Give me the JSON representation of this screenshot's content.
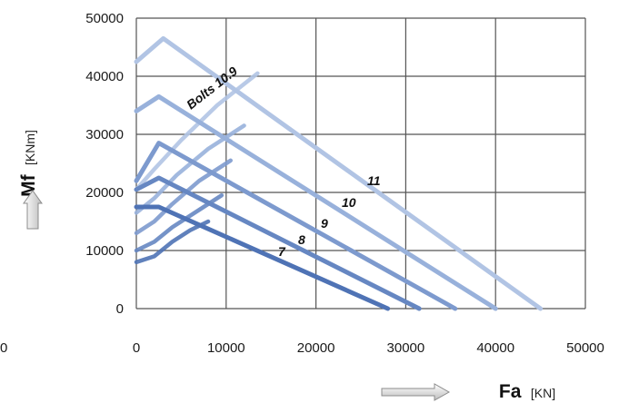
{
  "chart_data": {
    "type": "line",
    "title": "",
    "xlabel": "Fa",
    "xunit": "[KN]",
    "ylabel": "Mf",
    "yunit": "[KNm]",
    "xlim": [
      0,
      50000
    ],
    "ylim": [
      0,
      50000
    ],
    "x_ticks": [
      "0",
      "10000",
      "20000",
      "30000",
      "40000",
      "50000"
    ],
    "y_ticks": [
      "0",
      "10000",
      "20000",
      "30000",
      "40000",
      "50000"
    ],
    "left_stray_tick": "0",
    "grid": true,
    "legend": "none",
    "colors": [
      "#4f73b5",
      "#6687c2",
      "#7d9ace",
      "#98b1db",
      "#b1c4e4",
      "#c6d3ec"
    ],
    "series": [
      {
        "name": "7",
        "values": [
          [
            0,
            17500
          ],
          [
            2500,
            17500
          ],
          [
            28000,
            0
          ]
        ]
      },
      {
        "name": "8",
        "values": [
          [
            0,
            20500
          ],
          [
            2500,
            22500
          ],
          [
            31500,
            0
          ]
        ]
      },
      {
        "name": "9",
        "values": [
          [
            0,
            22000
          ],
          [
            2500,
            28500
          ],
          [
            35500,
            0
          ]
        ]
      },
      {
        "name": "10",
        "values": [
          [
            0,
            34000
          ],
          [
            2500,
            36500
          ],
          [
            40000,
            0
          ]
        ]
      },
      {
        "name": "11",
        "values": [
          [
            0,
            42500
          ],
          [
            3000,
            46500
          ],
          [
            45000,
            0
          ]
        ]
      }
    ],
    "bolt_curves": [
      {
        "values": [
          [
            0,
            8000
          ],
          [
            2000,
            9000
          ],
          [
            4000,
            11500
          ],
          [
            6000,
            13500
          ],
          [
            8000,
            15000
          ]
        ]
      },
      {
        "values": [
          [
            0,
            10000
          ],
          [
            2000,
            11500
          ],
          [
            4000,
            14000
          ],
          [
            7000,
            17000
          ],
          [
            9500,
            19500
          ]
        ]
      },
      {
        "values": [
          [
            0,
            13000
          ],
          [
            2000,
            15000
          ],
          [
            4000,
            18000
          ],
          [
            7000,
            22000
          ],
          [
            10500,
            25500
          ]
        ]
      },
      {
        "values": [
          [
            0,
            16500
          ],
          [
            2000,
            19000
          ],
          [
            4500,
            23000
          ],
          [
            8000,
            27500
          ],
          [
            12000,
            31500
          ]
        ]
      },
      {
        "values": [
          [
            0,
            20500
          ],
          [
            2000,
            24000
          ],
          [
            5000,
            29000
          ],
          [
            9000,
            35000
          ],
          [
            13500,
            40500
          ]
        ]
      }
    ],
    "annotations": [
      "7",
      "8",
      "9",
      "10",
      "11",
      "Bolts 10.9"
    ]
  }
}
